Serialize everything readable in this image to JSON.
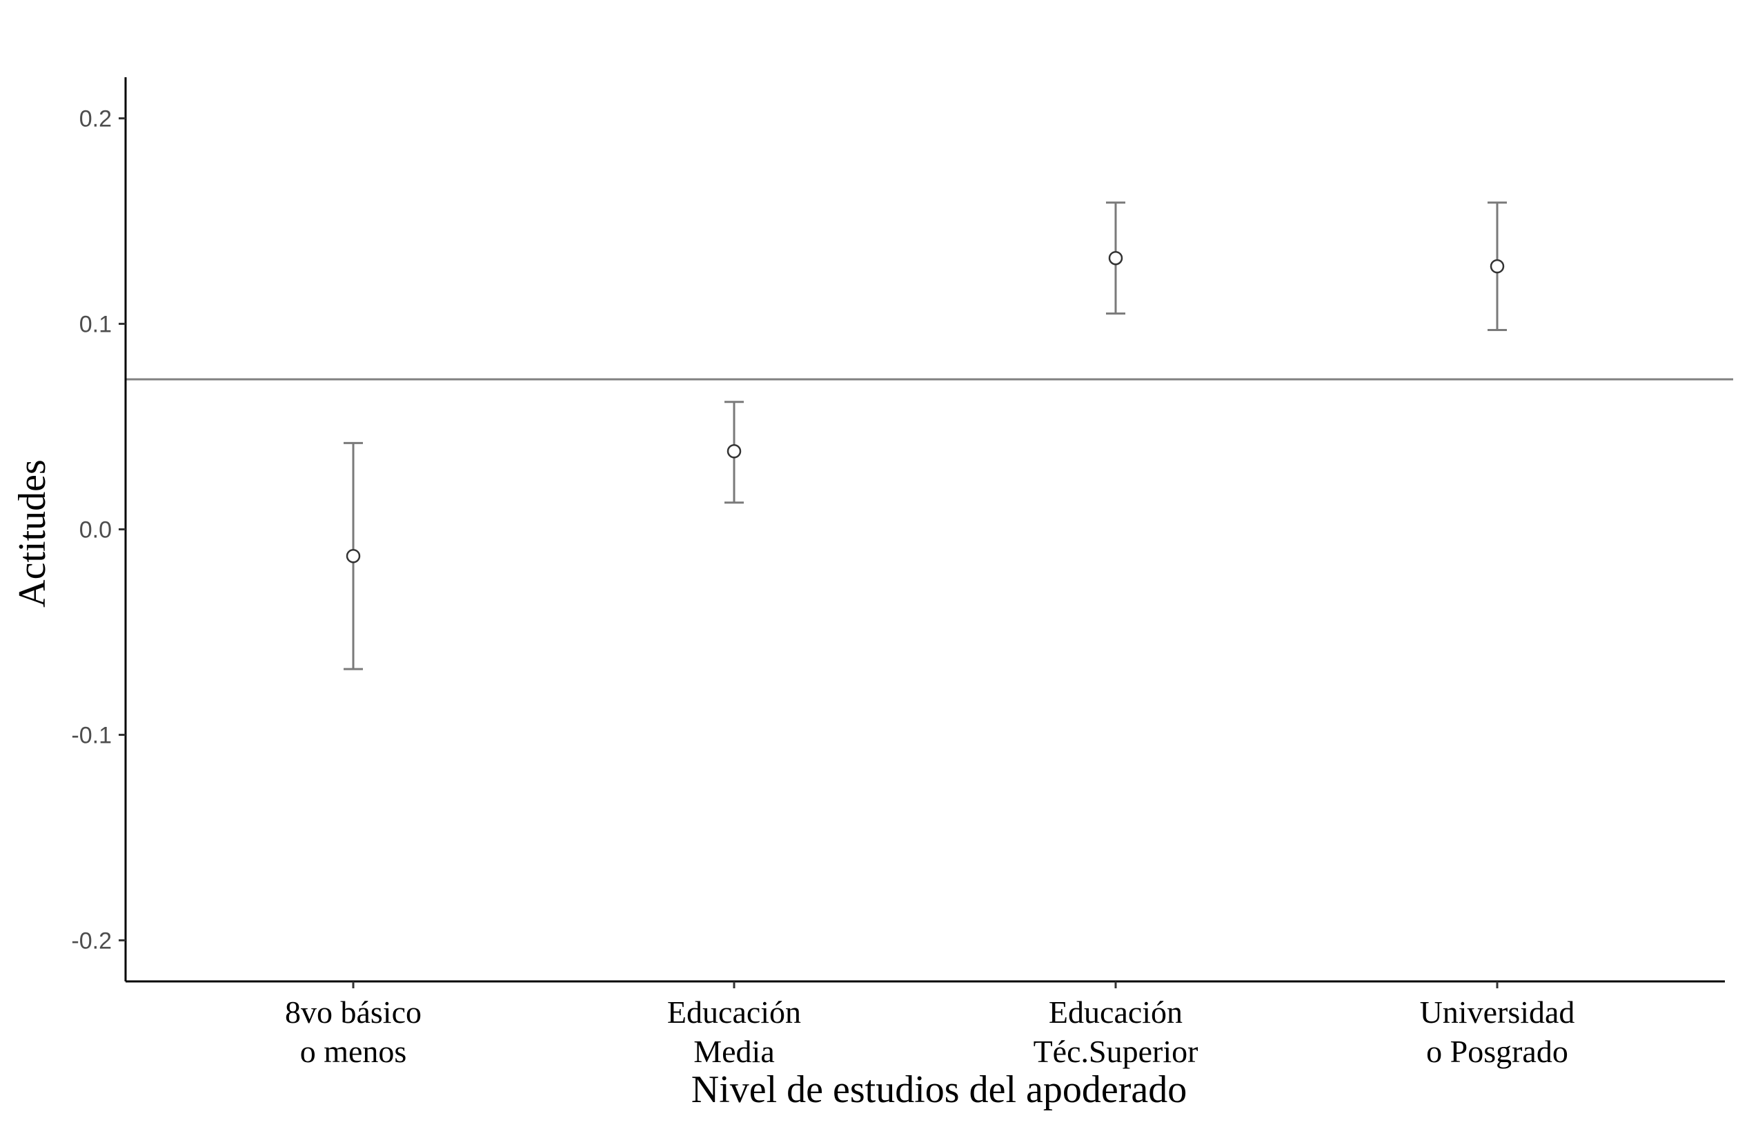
{
  "chart_data": {
    "type": "scatter",
    "subtype": "point-with-error-bars",
    "title": "",
    "xlabel": "Nivel de estudios del apoderado",
    "ylabel": "Actitudes",
    "ylim": [
      -0.22,
      0.22
    ],
    "y_ticks": [
      "0.2",
      "0.1",
      "0.0",
      "-0.1",
      "-0.2"
    ],
    "y_tick_values": [
      0.2,
      0.1,
      0.0,
      -0.1,
      -0.2
    ],
    "categories": [
      [
        "8vo básico",
        "o menos"
      ],
      [
        "Educación",
        "Media"
      ],
      [
        "Educación",
        "Téc.Superior"
      ],
      [
        "Universidad",
        "o Posgrado"
      ]
    ],
    "values": [
      -0.013,
      0.038,
      0.132,
      0.128
    ],
    "ci_lower": [
      -0.068,
      0.013,
      0.105,
      0.097
    ],
    "ci_upper": [
      0.042,
      0.062,
      0.159,
      0.159
    ],
    "reference_line": 0.073,
    "grid": false,
    "legend": "none",
    "colors": {
      "errorbar": "#7a7a7a",
      "reference_line": "#808080",
      "point_fill": "#ffffff",
      "point_stroke": "#333333",
      "axis": "#000000"
    }
  }
}
